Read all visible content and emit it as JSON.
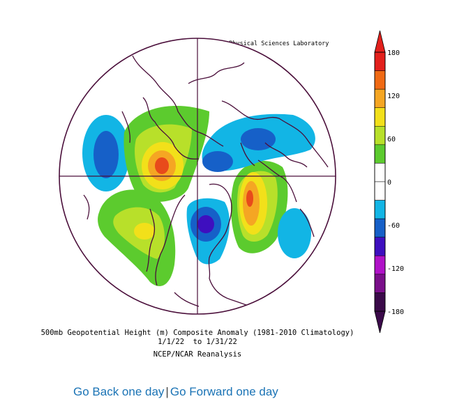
{
  "figure": {
    "credit": "NOAA Physical Sciences Laboratory",
    "title": "500mb Geopotential Height (m) Composite Anomaly (1981-2010 Climatology)",
    "dates": "1/1/22  to 1/31/22",
    "source": "NCEP/NCAR Reanalysis"
  },
  "colorbar": {
    "labels": [
      "180",
      "120",
      "60",
      "0",
      "-60",
      "-120",
      "-180"
    ],
    "colors": [
      "#e3201c",
      "#f06a14",
      "#f5a623",
      "#f2e01a",
      "#b8e02a",
      "#5ccb2e",
      "#ffffff",
      "#ffffff",
      "#12b5e5",
      "#1660c8",
      "#3e0fbf",
      "#b012c8",
      "#7a0f8a",
      "#3b0a4a"
    ]
  },
  "map": {
    "projection": "north-polar-stereographic",
    "anomaly_colors": {
      "strong_positive": "#e84a1b",
      "positive_orange": "#f5a623",
      "positive_yellow": "#f2e01a",
      "positive_lightgreen": "#b8e02a",
      "positive_green": "#5ccb2e",
      "negative_cyan": "#12b5e5",
      "negative_blue": "#1660c8",
      "negative_purple": "#3e0fbf"
    }
  },
  "nav": {
    "back_label": "Go Back one day",
    "separator": "|",
    "forward_label": "Go Forward one day"
  }
}
